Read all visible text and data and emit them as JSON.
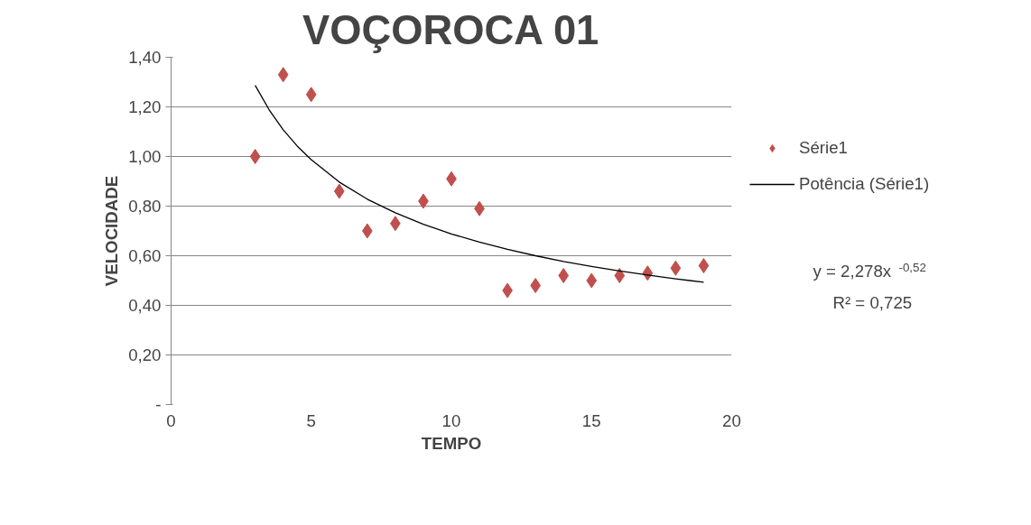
{
  "chart_data": {
    "type": "scatter",
    "title": "VOÇOROCA 01",
    "xlabel": "TEMPO",
    "ylabel": "VELOCIDADE",
    "x": [
      3,
      4,
      5,
      6,
      7,
      8,
      9,
      10,
      11,
      12,
      13,
      14,
      15,
      16,
      17,
      18,
      19
    ],
    "series": [
      {
        "name": "Série1",
        "color": "#c0504d",
        "marker": "diamond",
        "values": [
          1.0,
          1.33,
          1.25,
          0.86,
          0.7,
          0.73,
          0.82,
          0.91,
          0.79,
          0.46,
          0.48,
          0.52,
          0.5,
          0.52,
          0.53,
          0.55,
          0.56
        ]
      },
      {
        "name": "Potência (Série1)",
        "type": "line",
        "color": "#000000",
        "marker": "none",
        "x": [
          3,
          3.5,
          4,
          4.5,
          5,
          6,
          7,
          8,
          9,
          10,
          11,
          12,
          13,
          14,
          15,
          16,
          17,
          18,
          19
        ],
        "values": [
          1.287,
          1.188,
          1.108,
          1.042,
          0.987,
          0.897,
          0.828,
          0.773,
          0.727,
          0.688,
          0.655,
          0.626,
          0.6,
          0.577,
          0.557,
          0.539,
          0.522,
          0.507,
          0.493
        ]
      }
    ],
    "xlim": [
      0,
      20
    ],
    "xticks": [
      0,
      5,
      10,
      15,
      20
    ],
    "ylim": [
      0,
      1.4
    ],
    "yticks": [
      {
        "value": 0,
        "label": "-"
      },
      {
        "value": 0.2,
        "label": "0,20"
      },
      {
        "value": 0.4,
        "label": "0,40"
      },
      {
        "value": 0.6,
        "label": "0,60"
      },
      {
        "value": 0.8,
        "label": "0,80"
      },
      {
        "value": 1.0,
        "label": "1,00"
      },
      {
        "value": 1.2,
        "label": "1,20"
      },
      {
        "value": 1.4,
        "label": "1,40"
      }
    ],
    "grid": "y",
    "legend": "right",
    "annotations": [
      "y = 2,278x$^{-0,52}$",
      "R² = 0,725"
    ]
  }
}
